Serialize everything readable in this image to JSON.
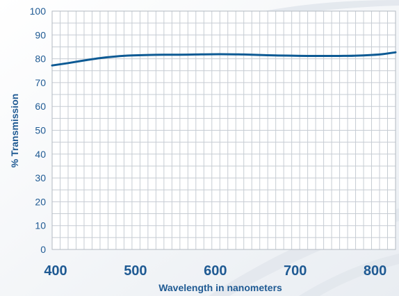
{
  "chart_data": {
    "type": "line",
    "title": "",
    "xlabel": "Wavelength in nanometers",
    "ylabel": "% Transmission",
    "xlim": [
      400,
      830
    ],
    "ylim": [
      0,
      100
    ],
    "x_ticks": [
      400,
      500,
      600,
      700,
      800
    ],
    "y_ticks": [
      0,
      10,
      20,
      30,
      40,
      50,
      60,
      70,
      80,
      90,
      100
    ],
    "grid": true,
    "series": [
      {
        "color": "#0d5a94",
        "x": [
          400,
          420,
          440,
          460,
          480,
          500,
          520,
          540,
          560,
          580,
          600,
          620,
          640,
          660,
          680,
          700,
          720,
          740,
          760,
          780,
          800,
          815,
          830
        ],
        "y": [
          77.2,
          78.2,
          79.3,
          80.3,
          81.0,
          81.4,
          81.6,
          81.7,
          81.7,
          81.8,
          81.9,
          81.9,
          81.8,
          81.6,
          81.4,
          81.3,
          81.2,
          81.2,
          81.2,
          81.3,
          81.6,
          82.0,
          82.7
        ]
      }
    ]
  }
}
